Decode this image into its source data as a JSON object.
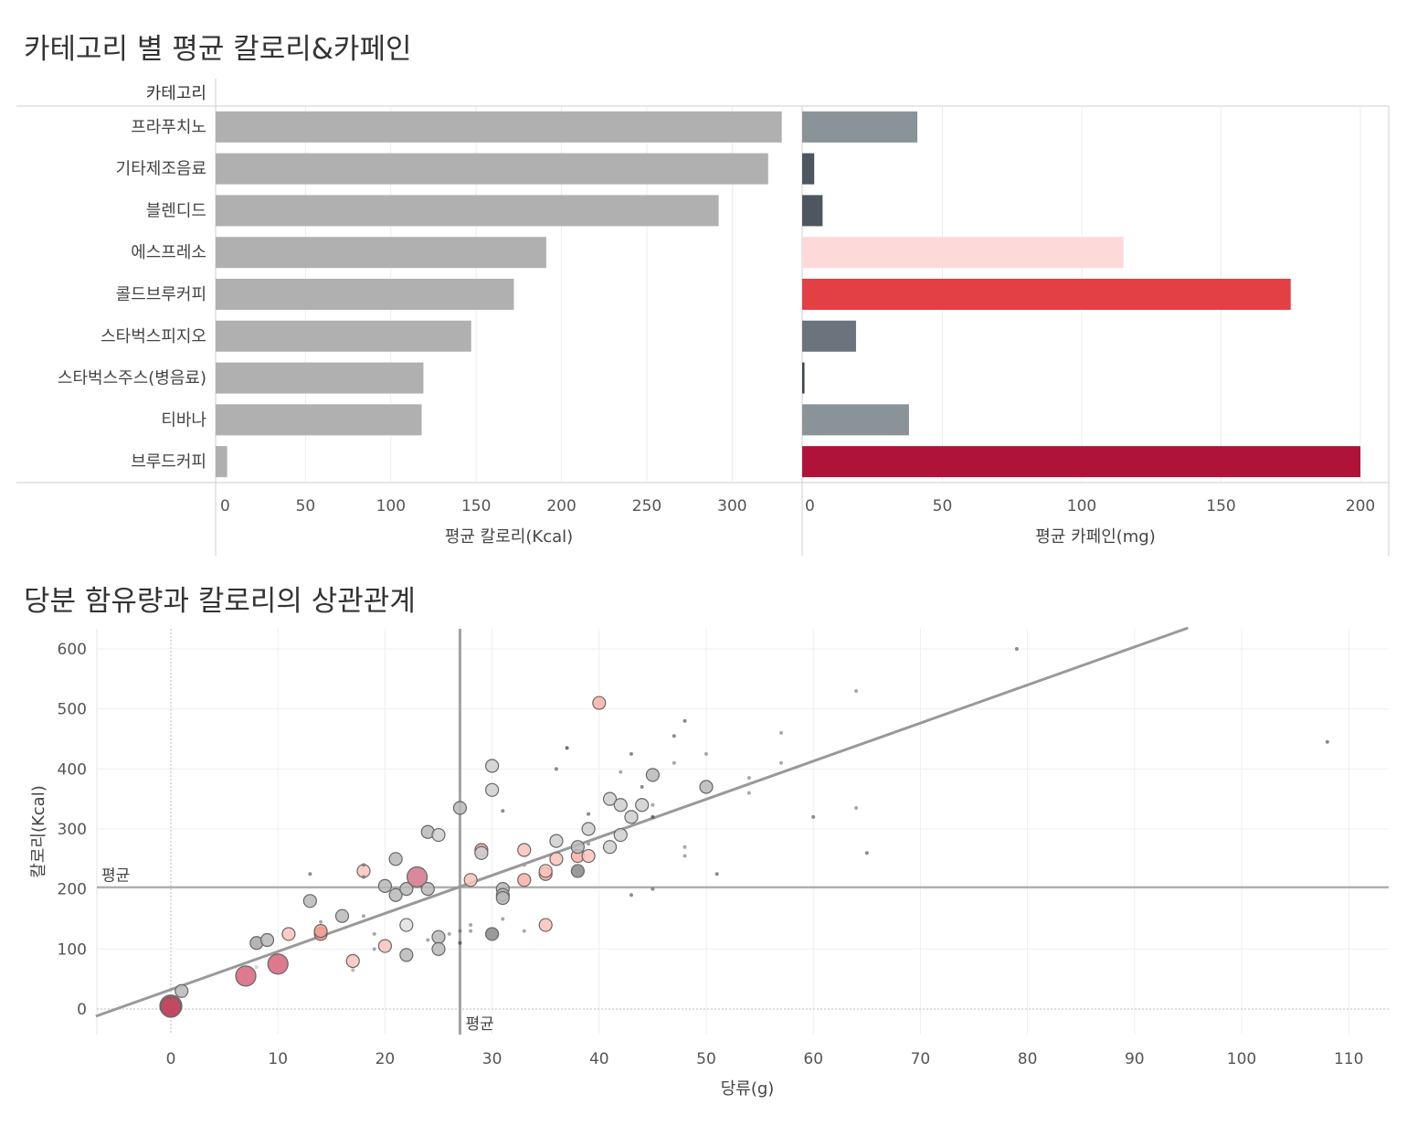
{
  "sections": {
    "bar_title": "카테고리 별 평균 칼로리&카페인",
    "scatter_title": "당분 함유량과 칼로리의 상관관계"
  },
  "chart_data": [
    {
      "type": "bar",
      "orientation": "horizontal",
      "row_header": "카테고리",
      "categories": [
        "프라푸치노",
        "기타제조음료",
        "블렌디드",
        "에스프레소",
        "콜드브루커피",
        "스타벅스피지오",
        "스타벅스주스(병음료)",
        "티바나",
        "브루드커피"
      ],
      "xlabel": "평균 칼로리(Kcal)",
      "xlim": [
        0,
        340
      ],
      "xticks": [
        0,
        50,
        100,
        150,
        200,
        250,
        300
      ],
      "values": [
        328,
        320,
        291,
        190,
        171,
        146,
        118,
        117,
        3
      ],
      "bar_color": "#b0b0b0",
      "grid": true
    },
    {
      "type": "bar",
      "orientation": "horizontal",
      "categories": [
        "프라푸치노",
        "기타제조음료",
        "블렌디드",
        "에스프레소",
        "콜드브루커피",
        "스타벅스피지오",
        "스타벅스주스(병음료)",
        "티바나",
        "브루드커피"
      ],
      "xlabel": "평균 카페인(mg)",
      "xlim": [
        0,
        210
      ],
      "xticks": [
        0,
        50,
        100,
        150,
        200
      ],
      "values": [
        41,
        4,
        7,
        115,
        175,
        19,
        0.5,
        38,
        200
      ],
      "bar_colors": [
        "#8a9398",
        "#4e5660",
        "#4e5660",
        "#fdd9d9",
        "#e34046",
        "#6b737c",
        "#3c4550",
        "#8a9398",
        "#b0133a"
      ],
      "grid": true
    },
    {
      "type": "scatter",
      "xlabel": "당류(g)",
      "ylabel": "칼로리(Kcal)",
      "xlim": [
        -7,
        114
      ],
      "ylim": [
        -45,
        635
      ],
      "xticks": [
        0,
        10,
        20,
        30,
        40,
        50,
        60,
        70,
        80,
        90,
        100,
        110
      ],
      "yticks": [
        0,
        100,
        200,
        300,
        400,
        500,
        600
      ],
      "reference_lines": [
        {
          "axis": "y",
          "value": 203,
          "label": "평균"
        },
        {
          "axis": "x",
          "value": 27,
          "label": "평균"
        }
      ],
      "trend_line": [
        [
          -7,
          -12
        ],
        [
          95,
          635
        ]
      ],
      "size_encoding": "caffeine",
      "points": [
        [
          0,
          5,
          3,
          "#b5374a"
        ],
        [
          0,
          3,
          2,
          "#c24860"
        ],
        [
          1,
          30,
          1,
          "#b9b9b9"
        ],
        [
          7,
          55,
          2,
          "#d96179"
        ],
        [
          8,
          70,
          0,
          "#cccccc"
        ],
        [
          8,
          110,
          1,
          "#a8a8a8"
        ],
        [
          9,
          115,
          1,
          "#b9b9b9"
        ],
        [
          10,
          75,
          2,
          "#d96179"
        ],
        [
          11,
          125,
          1,
          "#fbc3ba"
        ],
        [
          13,
          180,
          1,
          "#b9b9b9"
        ],
        [
          13,
          225,
          0,
          "#777"
        ],
        [
          14,
          125,
          1,
          "#f08a80"
        ],
        [
          14,
          130,
          1,
          "#f3a197"
        ],
        [
          14,
          145,
          0,
          "#999"
        ],
        [
          16,
          155,
          1,
          "#b9b9b9"
        ],
        [
          17,
          80,
          1,
          "#fbc3ba"
        ],
        [
          17,
          65,
          0,
          "#aaa"
        ],
        [
          18,
          230,
          1,
          "#fbc3ba"
        ],
        [
          18,
          240,
          0,
          "#777"
        ],
        [
          18,
          220,
          0,
          "#777"
        ],
        [
          18,
          155,
          0,
          "#999"
        ],
        [
          19,
          125,
          0,
          "#999"
        ],
        [
          19,
          100,
          0,
          "#999"
        ],
        [
          20,
          205,
          1,
          "#b9b9b9"
        ],
        [
          20,
          105,
          1,
          "#fbc3ba"
        ],
        [
          21,
          190,
          1,
          "#b9b9b9"
        ],
        [
          21,
          250,
          1,
          "#b9b9b9"
        ],
        [
          22,
          200,
          1,
          "#b9b9b9"
        ],
        [
          22,
          140,
          1,
          "#e0e0e0"
        ],
        [
          22,
          90,
          1,
          "#b9b9b9"
        ],
        [
          23,
          220,
          2,
          "#d4738b"
        ],
        [
          24,
          200,
          1,
          "#b9b9b9"
        ],
        [
          24,
          295,
          1,
          "#b9b9b9"
        ],
        [
          24,
          115,
          0,
          "#999"
        ],
        [
          25,
          290,
          1,
          "#cfcfcf"
        ],
        [
          25,
          120,
          1,
          "#b9b9b9"
        ],
        [
          25,
          100,
          1,
          "#b9b9b9"
        ],
        [
          26,
          125,
          0,
          "#999"
        ],
        [
          27,
          335,
          1,
          "#b9b9b9"
        ],
        [
          27,
          130,
          0,
          "#777"
        ],
        [
          27,
          110,
          0,
          "#555"
        ],
        [
          28,
          215,
          1,
          "#fbc3ba"
        ],
        [
          28,
          140,
          0,
          "#999"
        ],
        [
          28,
          130,
          0,
          "#999"
        ],
        [
          29,
          265,
          1,
          "#f3a197"
        ],
        [
          29,
          260,
          1,
          "#cfcfcf"
        ],
        [
          30,
          405,
          1,
          "#cfcfcf"
        ],
        [
          30,
          365,
          1,
          "#cfcfcf"
        ],
        [
          30,
          125,
          1,
          "#888"
        ],
        [
          31,
          200,
          1,
          "#b9b9b9"
        ],
        [
          31,
          190,
          1,
          "#b9b9b9"
        ],
        [
          31,
          185,
          1,
          "#b9b9b9"
        ],
        [
          31,
          150,
          0,
          "#999"
        ],
        [
          31,
          330,
          0,
          "#777"
        ],
        [
          33,
          265,
          1,
          "#fbc3ba"
        ],
        [
          33,
          215,
          1,
          "#f9b0a5"
        ],
        [
          33,
          240,
          0,
          "#999"
        ],
        [
          33,
          130,
          0,
          "#999"
        ],
        [
          35,
          225,
          1,
          "#f9b0a5"
        ],
        [
          35,
          230,
          1,
          "#fbc3ba"
        ],
        [
          35,
          140,
          1,
          "#fbc3ba"
        ],
        [
          36,
          280,
          1,
          "#cfcfcf"
        ],
        [
          36,
          250,
          1,
          "#fbc3ba"
        ],
        [
          36,
          400,
          0,
          "#777"
        ],
        [
          37,
          435,
          0,
          "#555"
        ],
        [
          38,
          255,
          1,
          "#f9b0a5"
        ],
        [
          38,
          270,
          1,
          "#b9b9b9"
        ],
        [
          38,
          230,
          1,
          "#888"
        ],
        [
          39,
          300,
          1,
          "#cfcfcf"
        ],
        [
          39,
          275,
          0,
          "#999"
        ],
        [
          39,
          325,
          0,
          "#777"
        ],
        [
          39,
          255,
          1,
          "#fbc3ba"
        ],
        [
          40,
          510,
          1,
          "#f9b0a5"
        ],
        [
          41,
          350,
          1,
          "#cfcfcf"
        ],
        [
          41,
          270,
          1,
          "#cfcfcf"
        ],
        [
          42,
          340,
          1,
          "#cfcfcf"
        ],
        [
          42,
          290,
          1,
          "#cfcfcf"
        ],
        [
          42,
          395,
          0,
          "#999"
        ],
        [
          43,
          320,
          1,
          "#cfcfcf"
        ],
        [
          43,
          425,
          0,
          "#777"
        ],
        [
          43,
          190,
          0,
          "#777"
        ],
        [
          44,
          340,
          1,
          "#cfcfcf"
        ],
        [
          44,
          370,
          0,
          "#777"
        ],
        [
          45,
          390,
          1,
          "#b9b9b9"
        ],
        [
          45,
          320,
          0,
          "#555"
        ],
        [
          45,
          340,
          0,
          "#999"
        ],
        [
          45,
          200,
          0,
          "#777"
        ],
        [
          47,
          455,
          0,
          "#777"
        ],
        [
          47,
          410,
          0,
          "#999"
        ],
        [
          48,
          480,
          0,
          "#777"
        ],
        [
          48,
          270,
          0,
          "#999"
        ],
        [
          48,
          255,
          0,
          "#999"
        ],
        [
          50,
          370,
          1,
          "#b9b9b9"
        ],
        [
          50,
          425,
          0,
          "#999"
        ],
        [
          51,
          225,
          0,
          "#777"
        ],
        [
          54,
          385,
          0,
          "#999"
        ],
        [
          54,
          360,
          0,
          "#999"
        ],
        [
          57,
          460,
          0,
          "#999"
        ],
        [
          57,
          410,
          0,
          "#999"
        ],
        [
          60,
          320,
          0,
          "#777"
        ],
        [
          64,
          530,
          0,
          "#999"
        ],
        [
          64,
          335,
          0,
          "#999"
        ],
        [
          65,
          260,
          0,
          "#777"
        ],
        [
          79,
          600,
          0,
          "#777"
        ],
        [
          108,
          445,
          0,
          "#777"
        ]
      ]
    }
  ]
}
